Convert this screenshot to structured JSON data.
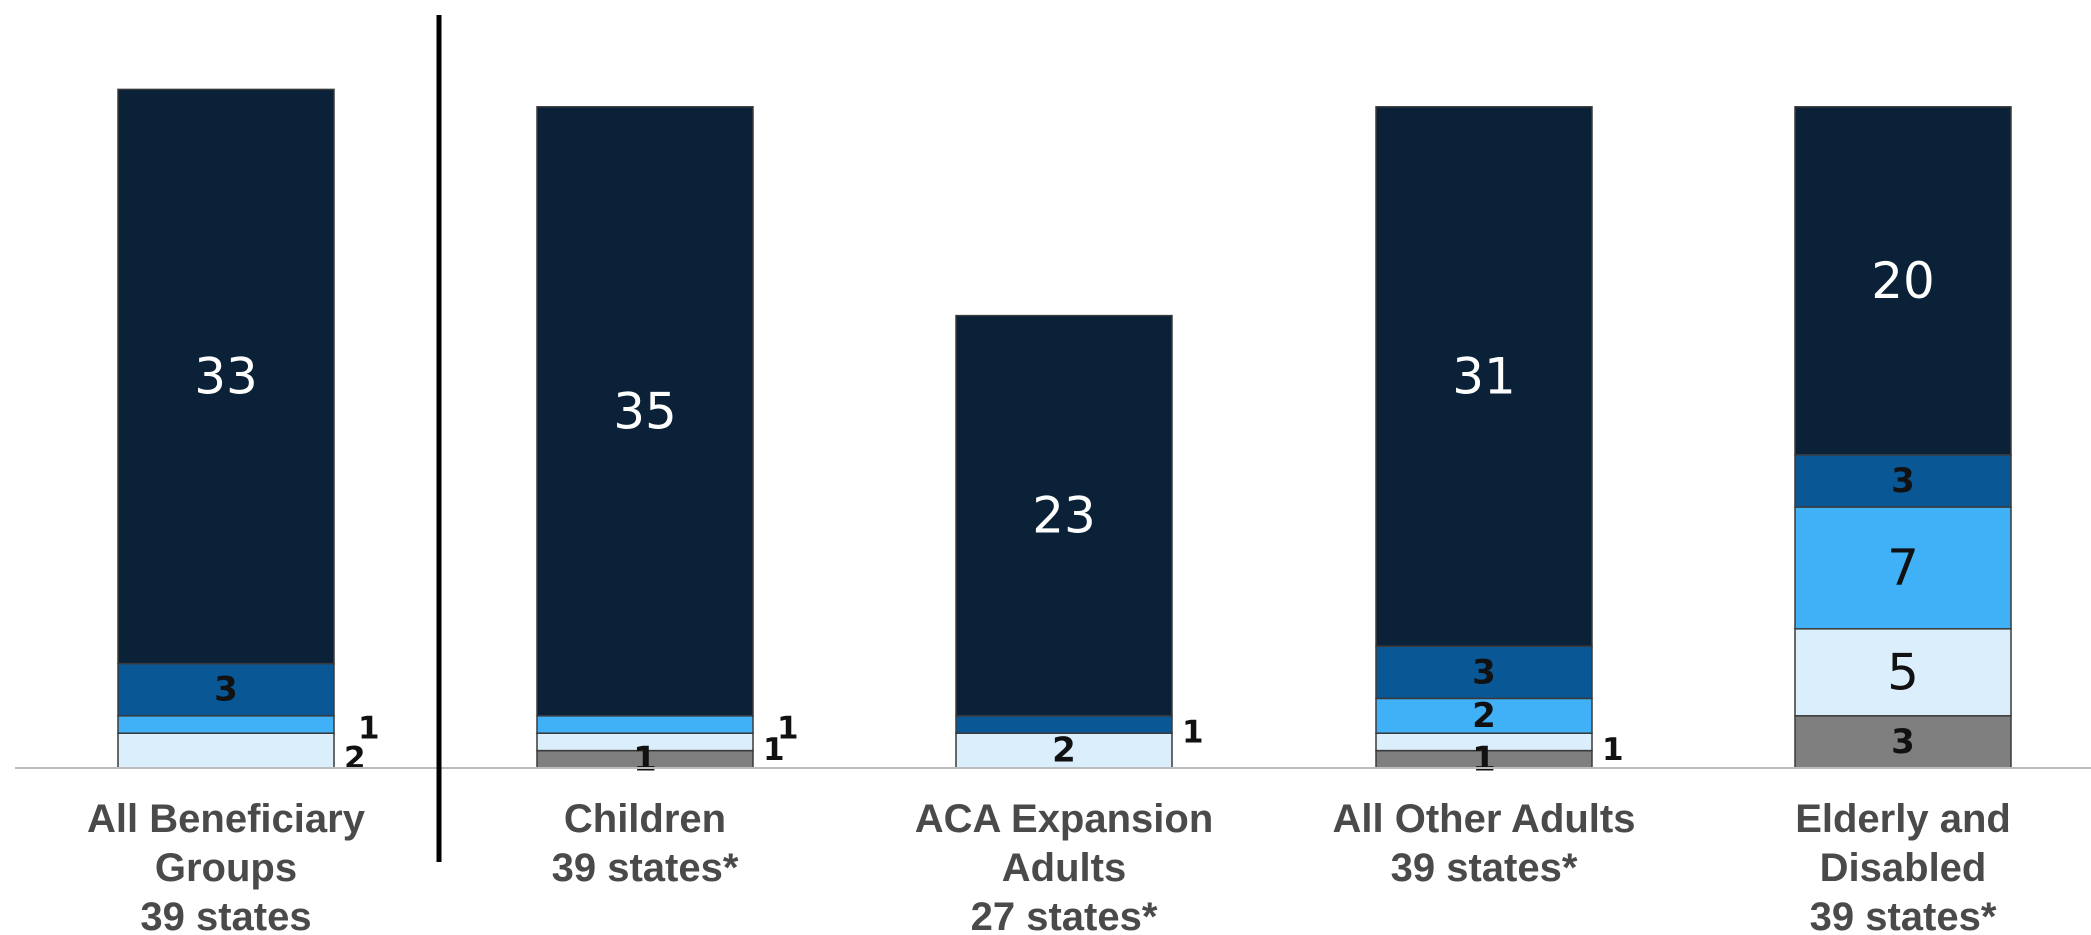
{
  "chart_data": {
    "type": "bar",
    "stacked": true,
    "categories": [
      [
        "All Beneficiary",
        "Groups",
        "39 states"
      ],
      [
        "Children",
        "39 states*"
      ],
      [
        "ACA Expansion",
        "Adults",
        "27 states*"
      ],
      [
        "All Other Adults",
        "39 states*"
      ],
      [
        "Elderly and",
        "Disabled",
        "39 states*"
      ]
    ],
    "series": [
      {
        "color": "#7f7f7f",
        "label_color": "#111111",
        "values": [
          0,
          1,
          0,
          1,
          3
        ]
      },
      {
        "color": "#daeefb",
        "label_color": "#111111",
        "values": [
          2,
          1,
          2,
          1,
          5
        ]
      },
      {
        "color": "#41b1f7",
        "label_color": "#111111",
        "values": [
          1,
          1,
          0,
          2,
          7
        ]
      },
      {
        "color": "#0a5796",
        "label_color": "#111111",
        "values": [
          3,
          0,
          1,
          3,
          3
        ]
      },
      {
        "color": "#0a2137",
        "label_color": "#ffffff",
        "values": [
          33,
          35,
          23,
          31,
          20
        ]
      }
    ],
    "label_placement": [
      [
        "",
        "inside",
        "right",
        "inside",
        "inside"
      ],
      [
        "right",
        "right",
        "inside",
        "right",
        "inside"
      ],
      [
        "right",
        "right",
        "",
        "inside",
        "inside"
      ],
      [
        "inside",
        "",
        "right",
        "inside",
        "inside"
      ],
      [
        "inside",
        "inside",
        "inside",
        "inside",
        "inside"
      ]
    ],
    "separator_after_category": 0,
    "xlabel": "",
    "ylabel": "",
    "title": "",
    "legend": "none",
    "grid": false
  }
}
